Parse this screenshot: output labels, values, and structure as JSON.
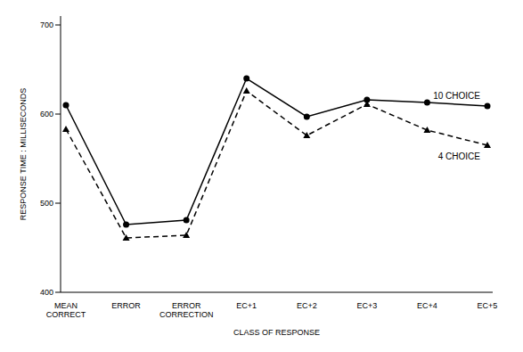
{
  "chart_data": {
    "type": "line",
    "x_label": "CLASS OF RESPONSE",
    "y_label": "RESPONSE TIME : MILLISECONDS",
    "categories": [
      "MEAN CORRECT",
      "ERROR",
      "ERROR CORRECTION",
      "EC+1",
      "EC+2",
      "EC+3",
      "EC+4",
      "EC+5"
    ],
    "ylim": [
      400,
      710
    ],
    "yticks": [
      400,
      500,
      600,
      700
    ],
    "grid": false,
    "series": [
      {
        "name": "10 CHOICE",
        "color": "#000000",
        "marker": "circle",
        "line_style": "solid",
        "values": [
          610,
          476,
          481,
          640,
          597,
          616,
          613,
          609
        ]
      },
      {
        "name": "4 CHOICE",
        "color": "#000000",
        "marker": "triangle",
        "line_style": "dashed",
        "values": [
          583,
          461,
          464,
          626,
          576,
          611,
          582,
          565
        ]
      }
    ]
  }
}
